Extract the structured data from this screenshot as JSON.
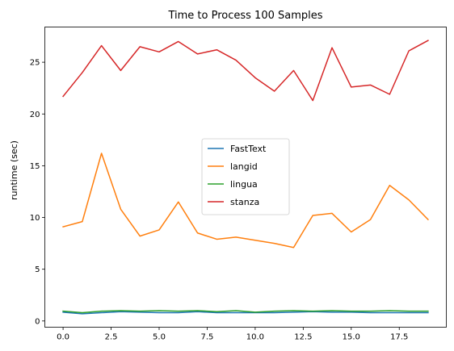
{
  "chart_data": {
    "type": "line",
    "title": "Time to Process 100 Samples",
    "xlabel": "",
    "ylabel": "runtime (sec)",
    "xlim": [
      -0.95,
      19.95
    ],
    "ylim": [
      -0.6,
      28.4
    ],
    "x_ticks": [
      0.0,
      2.5,
      5.0,
      7.5,
      10.0,
      12.5,
      15.0,
      17.5
    ],
    "x_tick_labels": [
      "0.0",
      "2.5",
      "5.0",
      "7.5",
      "10.0",
      "12.5",
      "15.0",
      "17.5"
    ],
    "y_ticks": [
      0,
      5,
      10,
      15,
      20,
      25
    ],
    "y_tick_labels": [
      "0",
      "5",
      "10",
      "15",
      "20",
      "25"
    ],
    "grid": false,
    "legend_position": "center",
    "x": [
      0,
      1,
      2,
      3,
      4,
      5,
      6,
      7,
      8,
      9,
      10,
      11,
      12,
      13,
      14,
      15,
      16,
      17,
      18,
      19
    ],
    "series": [
      {
        "name": "FastText",
        "color": "#1f77b4",
        "values": [
          0.85,
          0.7,
          0.8,
          0.9,
          0.85,
          0.8,
          0.8,
          0.9,
          0.8,
          0.8,
          0.8,
          0.8,
          0.85,
          0.9,
          0.85,
          0.85,
          0.8,
          0.8,
          0.8,
          0.8
        ]
      },
      {
        "name": "langid",
        "color": "#ff7f0e",
        "values": [
          9.1,
          9.6,
          16.2,
          10.8,
          8.2,
          8.8,
          11.5,
          8.5,
          7.9,
          8.1,
          7.8,
          7.5,
          7.1,
          10.2,
          10.4,
          8.6,
          9.8,
          13.1,
          11.7,
          9.8
        ]
      },
      {
        "name": "lingua",
        "color": "#2ca02c",
        "values": [
          0.95,
          0.8,
          0.95,
          1.0,
          0.95,
          1.0,
          0.95,
          1.0,
          0.9,
          1.0,
          0.85,
          0.95,
          1.0,
          0.95,
          1.0,
          0.95,
          0.95,
          1.0,
          0.95,
          0.95
        ]
      },
      {
        "name": "stanza",
        "color": "#d62728",
        "values": [
          21.7,
          24.0,
          26.6,
          24.2,
          26.5,
          26.0,
          27.0,
          25.8,
          26.2,
          25.2,
          23.5,
          22.2,
          24.2,
          21.3,
          26.4,
          22.6,
          22.8,
          21.9,
          26.1,
          27.1
        ]
      }
    ]
  }
}
